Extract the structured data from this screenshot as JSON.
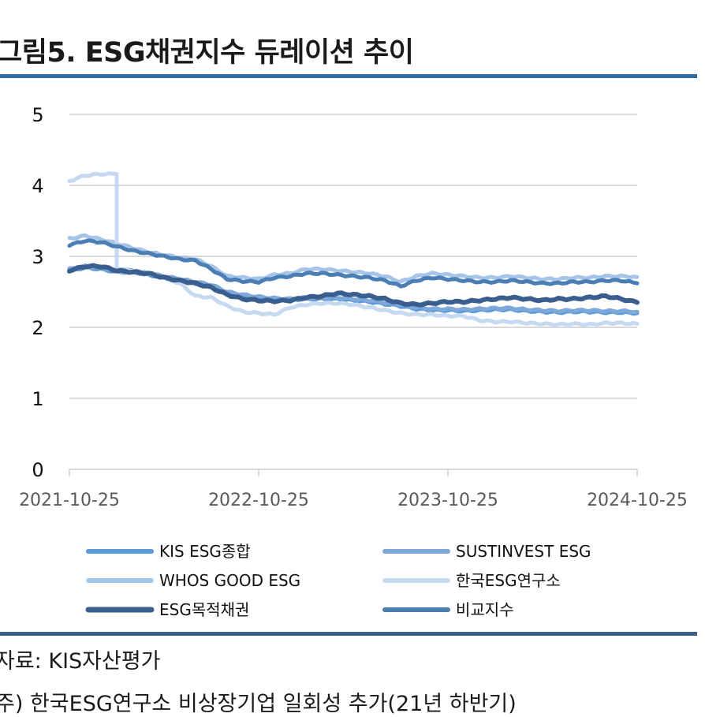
{
  "title": "그림5. ESG채권지수 듀레이션 추이",
  "source": "자료: KIS자산평가",
  "note": "주) 한국ESG연구소 비상장기업 일회성 추가(21년 하반기)",
  "chart_data": {
    "type": "line",
    "title": "그림5. ESG채권지수 듀레이션 추이",
    "xlabel": "",
    "ylabel": "",
    "x_ticks": [
      "2021-10-25",
      "2022-10-25",
      "2023-10-25",
      "2024-10-25"
    ],
    "y_ticks": [
      "0",
      "1",
      "2",
      "3",
      "4",
      "5"
    ],
    "ylim": [
      0,
      5
    ],
    "grid": "horizontal",
    "legend_position": "bottom",
    "x_months": [
      0,
      1,
      2,
      3,
      4,
      5,
      6,
      7,
      8,
      9,
      10,
      11,
      12,
      13,
      14,
      15,
      16,
      17,
      18,
      19,
      20,
      21,
      22,
      23,
      24,
      25,
      26,
      27,
      28,
      29,
      30,
      31,
      32,
      33,
      34,
      35,
      36
    ],
    "series": [
      {
        "name": "KIS ESG종합",
        "color": "#5b9bd5",
        "width": 5,
        "values": [
          2.8,
          2.84,
          2.82,
          2.78,
          2.78,
          2.74,
          2.7,
          2.66,
          2.62,
          2.58,
          2.48,
          2.44,
          2.42,
          2.4,
          2.39,
          2.4,
          2.4,
          2.4,
          2.38,
          2.36,
          2.33,
          2.3,
          2.26,
          2.24,
          2.24,
          2.23,
          2.24,
          2.25,
          2.25,
          2.23,
          2.22,
          2.21,
          2.22,
          2.22,
          2.21,
          2.21,
          2.2
        ]
      },
      {
        "name": "SUSTINVEST ESG",
        "color": "#7ea7da",
        "width": 5,
        "values": [
          2.82,
          2.86,
          2.84,
          2.8,
          2.8,
          2.76,
          2.72,
          2.68,
          2.64,
          2.6,
          2.5,
          2.46,
          2.43,
          2.41,
          2.4,
          2.42,
          2.42,
          2.42,
          2.4,
          2.38,
          2.35,
          2.32,
          2.28,
          2.26,
          2.26,
          2.25,
          2.26,
          2.27,
          2.27,
          2.25,
          2.24,
          2.23,
          2.24,
          2.24,
          2.23,
          2.23,
          2.22
        ]
      },
      {
        "name": "WHOS GOOD ESG",
        "color": "#a6c4e8",
        "width": 5,
        "values": [
          3.25,
          3.29,
          3.24,
          3.18,
          3.12,
          3.06,
          3.02,
          2.98,
          2.96,
          2.86,
          2.72,
          2.7,
          2.68,
          2.74,
          2.76,
          2.82,
          2.82,
          2.8,
          2.78,
          2.76,
          2.72,
          2.64,
          2.72,
          2.76,
          2.74,
          2.72,
          2.7,
          2.7,
          2.72,
          2.7,
          2.68,
          2.68,
          2.7,
          2.7,
          2.72,
          2.72,
          2.71
        ]
      },
      {
        "name": "한국ESG연구소",
        "color": "#c7d9f0",
        "width": 5,
        "values": [
          4.06,
          4.14,
          4.16,
          2.82,
          2.8,
          2.76,
          2.7,
          2.62,
          2.44,
          2.42,
          2.3,
          2.22,
          2.2,
          2.18,
          2.28,
          2.32,
          2.34,
          2.34,
          2.32,
          2.28,
          2.24,
          2.2,
          2.18,
          2.18,
          2.16,
          2.16,
          2.1,
          2.08,
          2.08,
          2.06,
          2.05,
          2.04,
          2.05,
          2.04,
          2.06,
          2.06,
          2.05
        ]
      },
      {
        "name": "ESG목적채권",
        "color": "#3a5f8f",
        "width": 6,
        "values": [
          2.8,
          2.86,
          2.86,
          2.8,
          2.78,
          2.76,
          2.7,
          2.66,
          2.62,
          2.56,
          2.46,
          2.4,
          2.38,
          2.37,
          2.38,
          2.42,
          2.44,
          2.48,
          2.46,
          2.44,
          2.4,
          2.34,
          2.32,
          2.34,
          2.36,
          2.36,
          2.38,
          2.4,
          2.42,
          2.4,
          2.38,
          2.4,
          2.4,
          2.42,
          2.44,
          2.4,
          2.35
        ]
      },
      {
        "name": "비교지수",
        "color": "#4a7eb5",
        "width": 5,
        "values": [
          3.16,
          3.22,
          3.2,
          3.14,
          3.08,
          3.04,
          3.0,
          2.96,
          2.94,
          2.82,
          2.68,
          2.65,
          2.64,
          2.7,
          2.72,
          2.76,
          2.76,
          2.74,
          2.72,
          2.7,
          2.66,
          2.58,
          2.66,
          2.7,
          2.68,
          2.66,
          2.64,
          2.64,
          2.66,
          2.64,
          2.62,
          2.62,
          2.64,
          2.64,
          2.66,
          2.66,
          2.62
        ]
      }
    ]
  }
}
